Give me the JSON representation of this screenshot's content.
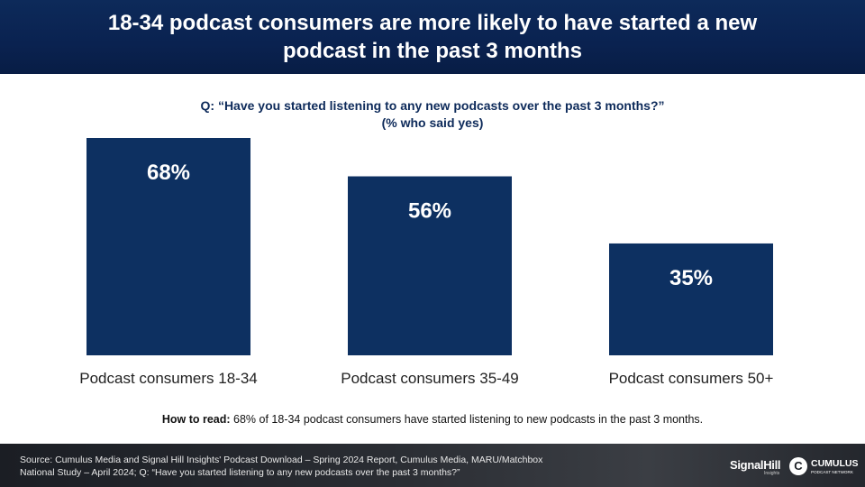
{
  "header": {
    "title": "18-34 podcast consumers are more likely to have started a new podcast in the past 3 months"
  },
  "question": {
    "line1": "Q: “Have you started listening to any new podcasts over the past 3 months?”",
    "line2": "(% who said yes)"
  },
  "chart_data": {
    "type": "bar",
    "categories": [
      "Podcast consumers 18-34",
      "Podcast consumers 35-49",
      "Podcast consumers 50+"
    ],
    "values": [
      68,
      56,
      35
    ],
    "value_labels": [
      "68%",
      "56%",
      "35%"
    ],
    "title": "",
    "xlabel": "",
    "ylabel": "",
    "ylim": [
      0,
      68
    ],
    "grid": false,
    "bar_color": "#0d3061"
  },
  "how_to_read": {
    "label": "How to read:",
    "text": " 68% of 18-34 podcast consumers have started listening to new podcasts in the past 3 months."
  },
  "footer": {
    "source_line1": "Source: Cumulus Media and Signal Hill Insights' Podcast Download – Spring 2024 Report, Cumulus Media, MARU/Matchbox",
    "source_line2": "National Study – April 2024; Q: “Have you started listening to any new podcasts over the past 3 months?”",
    "logo_signalhill": "SignalHill",
    "logo_signalhill_sub": "Insights",
    "logo_cumulus": "CUMULUS",
    "logo_cumulus_sub": "PODCAST NETWORK",
    "logo_cumulus_mark": "C"
  }
}
